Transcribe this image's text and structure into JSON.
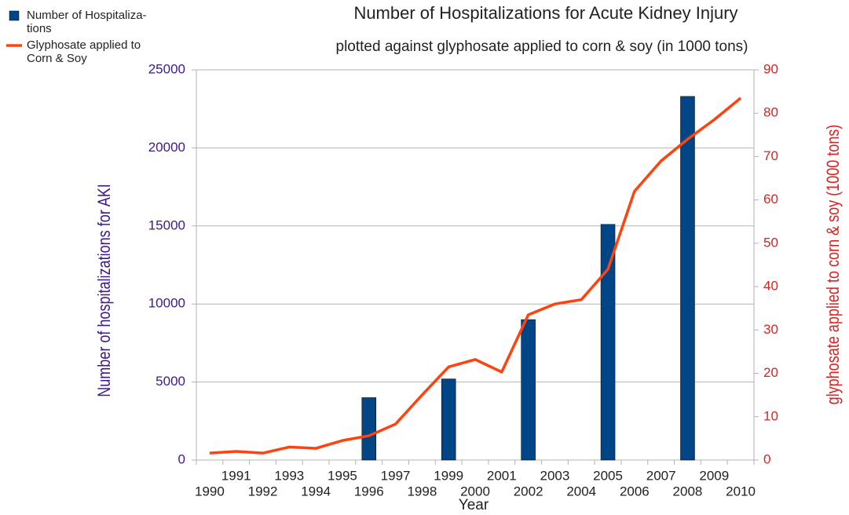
{
  "chart_data": {
    "type": "bar+line",
    "title": "Number of Hospitalizations for Acute Kidney Injury",
    "subtitle": "plotted against glyphosate applied to corn & soy (in 1000 tons)",
    "x_label": "Year",
    "y_label": "Number of hospitalizations for AKI",
    "y2_label": "glyphosate applied to corn & soy (1000 tons)",
    "categories": [
      "1990",
      "1991",
      "1992",
      "1993",
      "1994",
      "1995",
      "1996",
      "1997",
      "1998",
      "1999",
      "2000",
      "2001",
      "2002",
      "2003",
      "2004",
      "2005",
      "2006",
      "2007",
      "2008",
      "2009",
      "2010"
    ],
    "series": [
      {
        "name": "Number of Hospitaliza-\ntions",
        "type": "bar",
        "color": "#004586",
        "values": [
          null,
          null,
          null,
          null,
          null,
          null,
          4000,
          null,
          null,
          5200,
          null,
          null,
          9000,
          null,
          null,
          15100,
          null,
          null,
          23300,
          null,
          null
        ]
      },
      {
        "name": "Glyphosate applied to\nCorn & Soy",
        "type": "line",
        "color": "#ff420e",
        "axis": "y2",
        "values": [
          1.6,
          2,
          1.6,
          3,
          2.7,
          4.5,
          5.6,
          8.3,
          15,
          21.5,
          23.2,
          20.3,
          33.5,
          36,
          37,
          44,
          62,
          69,
          74,
          78.5,
          83.5
        ]
      }
    ],
    "ylim": [
      0,
      25000
    ],
    "yticks": [
      0,
      5000,
      10000,
      15000,
      20000,
      25000
    ],
    "y2lim": [
      0,
      90
    ],
    "y2ticks": [
      0,
      10,
      20,
      30,
      40,
      50,
      60,
      70,
      80,
      90
    ],
    "legend": "top-left"
  }
}
